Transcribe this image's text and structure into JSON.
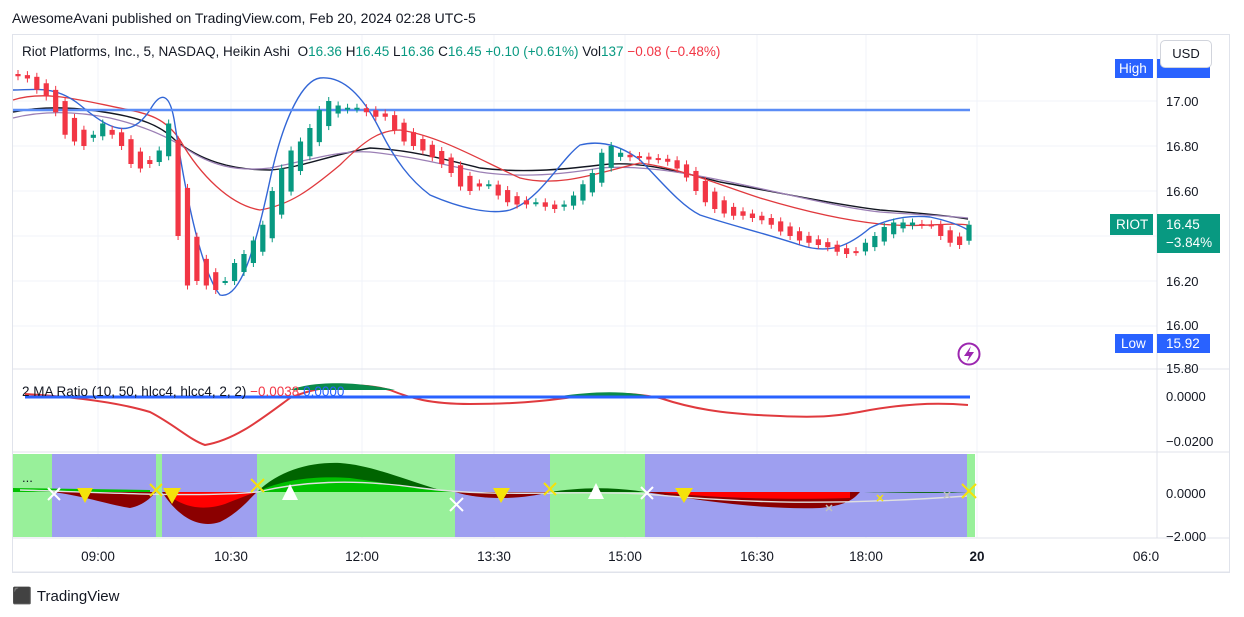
{
  "published_line": "AwesomeAvani published on TradingView.com, Feb 20, 2024 02:28 UTC-5",
  "legend": {
    "symbol": "Riot Platforms, Inc., 5, NASDAQ, Heikin Ashi",
    "o_label": "O",
    "o": "16.36",
    "h_label": "H",
    "h": "16.45",
    "l_label": "L",
    "l": "16.36",
    "c_label": "C",
    "c": "16.45",
    "change": "+0.10 (+0.61%)",
    "vol_label": "Vol",
    "vol": "137",
    "vol_change": "−0.08 (−0.48%)"
  },
  "currency_button": "USD",
  "price_labels": {
    "high_tag": "High",
    "low_tag": "Low",
    "low_value": "15.92",
    "ticker": "RIOT",
    "last_price": "16.45",
    "last_change": "−3.84%"
  },
  "price_axis": [
    "17.00",
    "16.80",
    "16.60",
    "16.20",
    "16.00",
    "15.80"
  ],
  "indicator": {
    "label": "2 MA Ratio (10, 50, hlcc4, hlcc4, 2, 2)",
    "value1": "−0.0038",
    "value2": "0.0000",
    "axis": [
      "0.0000",
      "−0.0200"
    ]
  },
  "oscillator": {
    "axis": [
      "0.0000",
      "−2.000"
    ],
    "menu": "..."
  },
  "time_axis": [
    "09:00",
    "10:30",
    "12:00",
    "13:30",
    "15:00",
    "16:30",
    "18:00",
    "20",
    "06:0"
  ],
  "footer_brand": "TradingView",
  "colors": {
    "up": "#089981",
    "down": "#f23645",
    "blue": "#2962ff",
    "bg_green": "#98f09a",
    "bg_purple": "#9e9ff0"
  },
  "chart_data": {
    "type": "candlestick",
    "heikin_ashi_closes": [
      17.11,
      17.1,
      17.05,
      17.02,
      16.95,
      16.85,
      16.82,
      16.8,
      16.85,
      16.9,
      16.85,
      16.8,
      16.72,
      16.7,
      16.72,
      16.78,
      16.9,
      16.4,
      16.18,
      16.2,
      16.18,
      16.16,
      16.2,
      16.28,
      16.32,
      16.38,
      16.45,
      16.6,
      16.7,
      16.78,
      16.82,
      16.88,
      16.96,
      17.0,
      16.98,
      16.97,
      16.97,
      16.95,
      16.93,
      16.93,
      16.87,
      16.82,
      16.8,
      16.78,
      16.75,
      16.72,
      16.68,
      16.62,
      16.6,
      16.62,
      16.63,
      16.58,
      16.55,
      16.54,
      16.54,
      16.55,
      16.53,
      16.52,
      16.54,
      16.58,
      16.63,
      16.68,
      16.77,
      16.8,
      16.77,
      16.75,
      16.75,
      16.74,
      16.74,
      16.73,
      16.7,
      16.66,
      16.6,
      16.55,
      16.52,
      16.5,
      16.49,
      16.49,
      16.48,
      16.47,
      16.45,
      16.42,
      16.4,
      16.38,
      16.37,
      16.36,
      16.35,
      16.33,
      16.32,
      16.33,
      16.37,
      16.4,
      16.44,
      16.46,
      16.46,
      16.46,
      16.45,
      16.45,
      16.4,
      16.37,
      16.36,
      16.45
    ],
    "last_price": 16.45,
    "ylim": [
      15.75,
      17.22
    ]
  }
}
